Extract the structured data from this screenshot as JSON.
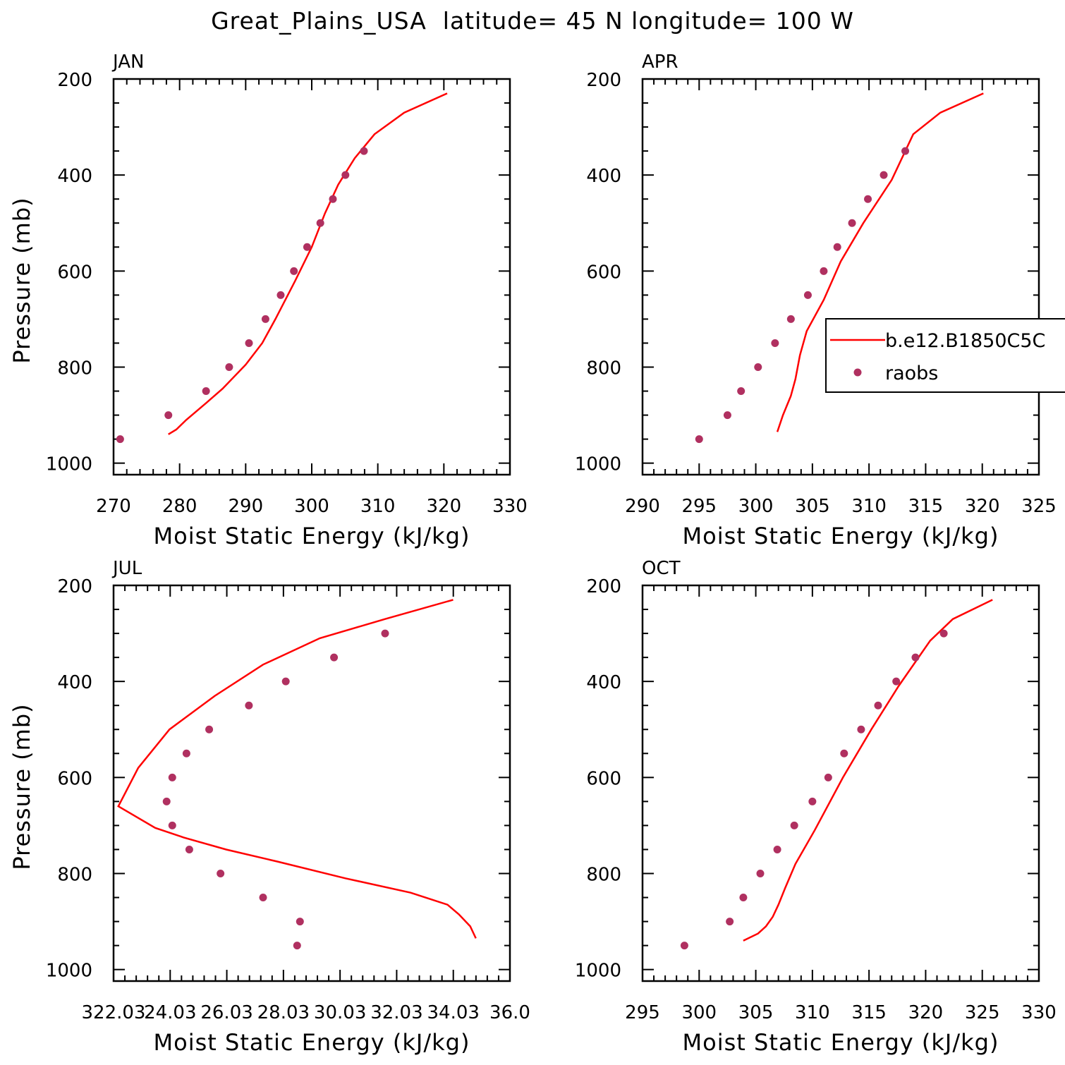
{
  "title": "Great_Plains_USA  latitude= 45 N longitude= 100 W",
  "colors": {
    "model": "#ff0000",
    "obs": "#b03060",
    "axis": "#000000"
  },
  "chart_data": [
    {
      "type": "line",
      "panel_label": "JAN",
      "xlabel": "Moist Static Energy (kJ/kg)",
      "ylabel": "Pressure (mb)",
      "xlim": [
        270,
        330
      ],
      "ylim": [
        1000,
        200
      ],
      "xticks": [
        "270",
        "280",
        "290",
        "300",
        "310",
        "320",
        "330"
      ],
      "yticks": [
        "200",
        "400",
        "600",
        "800",
        "1000"
      ],
      "series": [
        {
          "kind": "line",
          "values": [
            [
              278.3,
              940
            ],
            [
              279.5,
              930
            ],
            [
              281,
              910
            ],
            [
              284,
              875
            ],
            [
              286.5,
              845
            ],
            [
              290,
              795
            ],
            [
              292.5,
              750
            ],
            [
              294.5,
              700
            ],
            [
              297.5,
              620
            ],
            [
              300,
              550
            ],
            [
              302,
              480
            ],
            [
              304,
              420
            ],
            [
              306.5,
              365
            ],
            [
              309.5,
              315
            ],
            [
              314,
              270
            ],
            [
              320.5,
              230
            ]
          ]
        },
        {
          "kind": "points",
          "values": [
            [
              271,
              950
            ],
            [
              278.3,
              900
            ],
            [
              284,
              850
            ],
            [
              287.5,
              800
            ],
            [
              290.5,
              750
            ],
            [
              293,
              700
            ],
            [
              295.3,
              650
            ],
            [
              297.3,
              600
            ],
            [
              299.3,
              550
            ],
            [
              301.3,
              500
            ],
            [
              303.2,
              450
            ],
            [
              305.1,
              400
            ],
            [
              307.9,
              350
            ]
          ]
        }
      ]
    },
    {
      "type": "line",
      "panel_label": "APR",
      "xlabel": "Moist Static Energy (kJ/kg)",
      "ylabel": "",
      "xlim": [
        290,
        325
      ],
      "ylim": [
        1000,
        200
      ],
      "xticks": [
        "290",
        "295",
        "300",
        "305",
        "310",
        "315",
        "320",
        "325"
      ],
      "yticks": [
        "200",
        "400",
        "600",
        "800",
        "1000"
      ],
      "legend": {
        "position": "right",
        "entries": [
          "b.e12.B1850C5C",
          "raobs"
        ]
      },
      "series": [
        {
          "kind": "line",
          "values": [
            [
              301.9,
              935
            ],
            [
              302.4,
              900
            ],
            [
              303.1,
              860
            ],
            [
              303.5,
              825
            ],
            [
              303.9,
              775
            ],
            [
              304.5,
              725
            ],
            [
              306,
              660
            ],
            [
              307.5,
              580
            ],
            [
              309.5,
              500
            ],
            [
              312,
              410
            ],
            [
              313.9,
              315
            ],
            [
              316.3,
              270
            ],
            [
              320.1,
              230
            ]
          ]
        },
        {
          "kind": "points",
          "values": [
            [
              295,
              950
            ],
            [
              297.5,
              900
            ],
            [
              298.7,
              850
            ],
            [
              300.2,
              800
            ],
            [
              301.7,
              750
            ],
            [
              303.1,
              700
            ],
            [
              304.6,
              650
            ],
            [
              306,
              600
            ],
            [
              307.2,
              550
            ],
            [
              308.5,
              500
            ],
            [
              309.9,
              450
            ],
            [
              311.3,
              400
            ],
            [
              313.2,
              350
            ]
          ]
        }
      ]
    },
    {
      "type": "line",
      "panel_label": "JUL",
      "xlabel": "Moist Static Energy (kJ/kg)",
      "ylabel": "Pressure (mb)",
      "xlim": [
        322.03,
        336.0
      ],
      "ylim": [
        1000,
        200
      ],
      "xticks": [
        "322.03",
        "24.03",
        "26.03",
        "28.03",
        "30.03",
        "32.03",
        "34.03",
        "36.0"
      ],
      "yticks": [
        "200",
        "400",
        "600",
        "800",
        "1000"
      ],
      "series": [
        {
          "kind": "line",
          "values": [
            [
              334.8,
              935
            ],
            [
              334.6,
              910
            ],
            [
              334.2,
              885
            ],
            [
              333.8,
              865
            ],
            [
              332.5,
              840
            ],
            [
              330.2,
              810
            ],
            [
              327.8,
              775
            ],
            [
              326.0,
              750
            ],
            [
              324.5,
              725
            ],
            [
              323.5,
              705
            ],
            [
              322.2,
              660
            ],
            [
              322.9,
              580
            ],
            [
              324.0,
              500
            ],
            [
              325.6,
              430
            ],
            [
              327.3,
              365
            ],
            [
              329.3,
              310
            ],
            [
              331.6,
              270
            ],
            [
              334.0,
              230
            ]
          ]
        },
        {
          "kind": "points",
          "values": [
            [
              328.5,
              950
            ],
            [
              328.6,
              900
            ],
            [
              327.3,
              850
            ],
            [
              325.8,
              800
            ],
            [
              324.7,
              750
            ],
            [
              324.1,
              700
            ],
            [
              323.9,
              650
            ],
            [
              324.1,
              600
            ],
            [
              324.6,
              550
            ],
            [
              325.4,
              500
            ],
            [
              326.8,
              450
            ],
            [
              328.1,
              400
            ],
            [
              329.8,
              350
            ],
            [
              331.6,
              300
            ]
          ]
        }
      ]
    },
    {
      "type": "line",
      "panel_label": "OCT",
      "xlabel": "Moist Static Energy (kJ/kg)",
      "ylabel": "",
      "xlim": [
        295,
        330
      ],
      "ylim": [
        1000,
        200
      ],
      "xticks": [
        "295",
        "300",
        "305",
        "310",
        "315",
        "320",
        "325",
        "330"
      ],
      "yticks": [
        "200",
        "400",
        "600",
        "800",
        "1000"
      ],
      "series": [
        {
          "kind": "line",
          "values": [
            [
              303.9,
              940
            ],
            [
              305.2,
              925
            ],
            [
              305.9,
              910
            ],
            [
              306.5,
              890
            ],
            [
              307,
              865
            ],
            [
              307.6,
              830
            ],
            [
              308.5,
              780
            ],
            [
              310.2,
              710
            ],
            [
              312.7,
              600
            ],
            [
              315.2,
              500
            ],
            [
              317.6,
              410
            ],
            [
              320.4,
              315
            ],
            [
              322.4,
              270
            ],
            [
              325.9,
              230
            ]
          ]
        },
        {
          "kind": "points",
          "values": [
            [
              298.7,
              950
            ],
            [
              302.7,
              900
            ],
            [
              303.9,
              850
            ],
            [
              305.4,
              800
            ],
            [
              306.9,
              750
            ],
            [
              308.4,
              700
            ],
            [
              310,
              650
            ],
            [
              311.4,
              600
            ],
            [
              312.8,
              550
            ],
            [
              314.3,
              500
            ],
            [
              315.8,
              450
            ],
            [
              317.4,
              400
            ],
            [
              319.1,
              350
            ],
            [
              321.6,
              300
            ]
          ]
        }
      ]
    }
  ]
}
